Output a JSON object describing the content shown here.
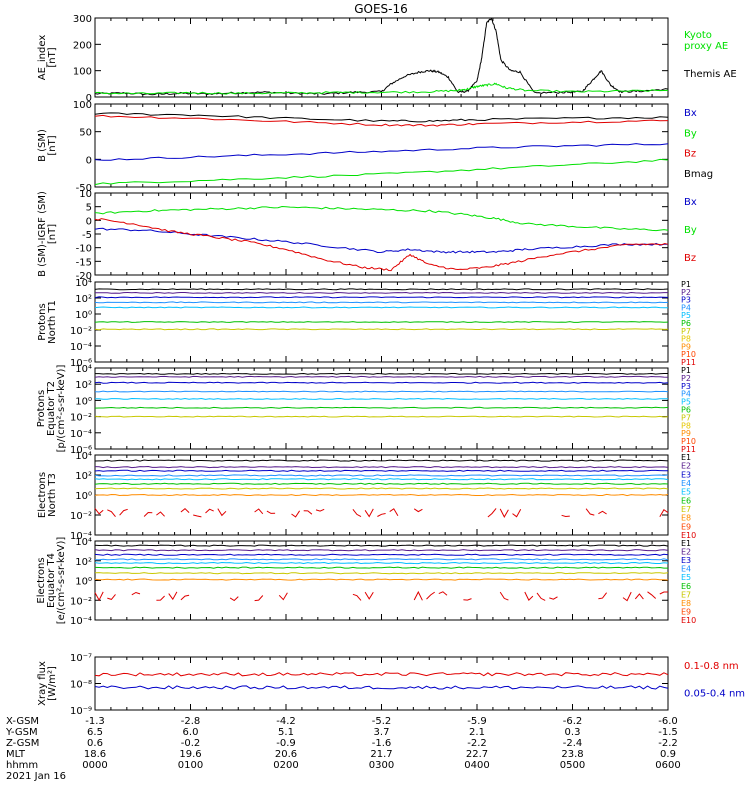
{
  "title": "GOES-16",
  "colors": {
    "black": "#000000",
    "blue": "#0000c8",
    "green": "#00e000",
    "red": "#e00000"
  },
  "chart_data": {
    "type": "line",
    "x_ticks": [
      "0000",
      "0100",
      "0200",
      "0300",
      "0400",
      "0500",
      "0600"
    ],
    "panels": [
      {
        "ylabel": [
          "AE_index",
          "[nT]"
        ],
        "yticks": [
          "300",
          "200",
          "100",
          "0"
        ],
        "ylim": [
          0,
          300
        ],
        "log": false,
        "legend": [
          {
            "text": "Kyoto",
            "color": "#00e000"
          },
          {
            "text": "proxy AE",
            "color": "#00e000"
          },
          {
            "text": "Themis AE",
            "color": "#000000"
          }
        ],
        "series": [
          {
            "name": "Themis AE",
            "color": "#000000",
            "x": [
              0,
              0.3,
              0.6,
              0.9,
              1.2,
              1.5,
              1.8,
              2.1,
              2.4,
              2.7,
              3.0,
              3.1,
              3.25,
              3.4,
              3.5,
              3.6,
              3.7,
              3.8,
              3.9,
              4.0,
              4.05,
              4.1,
              4.15,
              4.2,
              4.25,
              4.35,
              4.45,
              4.6,
              4.9,
              5.1,
              5.2,
              5.3,
              5.4,
              5.5,
              5.7,
              6.0
            ],
            "y": [
              12,
              15,
              10,
              14,
              12,
              16,
              18,
              14,
              12,
              18,
              20,
              50,
              80,
              95,
              100,
              95,
              75,
              18,
              22,
              60,
              150,
              280,
              300,
              250,
              140,
              100,
              95,
              15,
              18,
              20,
              60,
              100,
              45,
              20,
              22,
              30
            ]
          },
          {
            "name": "Kyoto proxy AE",
            "color": "#00e000",
            "x": [
              0,
              0.5,
              1.0,
              1.5,
              2.0,
              2.5,
              3.0,
              3.5,
              3.8,
              3.9,
              4.0,
              4.1,
              4.2,
              4.3,
              4.5,
              5.0,
              5.5,
              6.0
            ],
            "y": [
              15,
              13,
              16,
              14,
              15,
              17,
              18,
              20,
              25,
              30,
              40,
              45,
              50,
              35,
              25,
              20,
              22,
              25
            ]
          }
        ]
      },
      {
        "ylabel": [
          "B (SM)",
          "[nT]"
        ],
        "yticks": [
          "100",
          "50",
          "0",
          "-50"
        ],
        "ylim": [
          -55,
          120
        ],
        "log": false,
        "legend": [
          {
            "text": "Bx",
            "color": "#0000c8"
          },
          {
            "text": "By",
            "color": "#00e000"
          },
          {
            "text": "Bz",
            "color": "#e00000"
          },
          {
            "text": "Bmag",
            "color": "#000000"
          }
        ],
        "series": [
          {
            "name": "Bmag",
            "color": "#000000",
            "x": [
              0,
              1,
              2,
              3,
              3.5,
              4,
              5,
              6
            ],
            "y": [
              100,
              97,
              90,
              84,
              84,
              87,
              90,
              92
            ]
          },
          {
            "name": "Bz",
            "color": "#e00000",
            "x": [
              0,
              1,
              2,
              3,
              3.5,
              4,
              5,
              6
            ],
            "y": [
              95,
              90,
              83,
              76,
              75,
              78,
              82,
              85
            ]
          },
          {
            "name": "Bx",
            "color": "#0000c8",
            "x": [
              0,
              1,
              2,
              3,
              4,
              5,
              6
            ],
            "y": [
              2,
              8,
              14,
              20,
              27,
              32,
              36
            ]
          },
          {
            "name": "By",
            "color": "#00e000",
            "x": [
              0,
              1,
              2,
              3,
              4,
              5,
              6
            ],
            "y": [
              -48,
              -42,
              -35,
              -28,
              -18,
              -8,
              2
            ]
          }
        ]
      },
      {
        "ylabel": [
          "B (SM)-IGRF (SM)",
          "[nT]"
        ],
        "yticks": [
          "10",
          "5",
          "0",
          "-5",
          "-10",
          "-15",
          "-20"
        ],
        "ylim": [
          -21,
          11
        ],
        "log": false,
        "legend": [
          {
            "text": "Bx",
            "color": "#0000c8"
          },
          {
            "text": "By",
            "color": "#00e000"
          },
          {
            "text": "Bz",
            "color": "#e00000"
          }
        ],
        "series": [
          {
            "name": "By",
            "color": "#00e000",
            "x": [
              0,
              0.5,
              1,
              1.5,
              2,
              2.5,
              3,
              3.5,
              3.9,
              4.2,
              4.5,
              5,
              5.5,
              6
            ],
            "y": [
              3,
              4,
              4.5,
              5,
              5.5,
              5,
              4.5,
              4,
              2.5,
              1,
              -1,
              -2,
              -3,
              -3.5
            ]
          },
          {
            "name": "Bx",
            "color": "#0000c8",
            "x": [
              0,
              0.5,
              1,
              1.5,
              2,
              2.5,
              3,
              3.3,
              3.6,
              3.9,
              4.2,
              4.5,
              5,
              5.5,
              6
            ],
            "y": [
              -3,
              -3.5,
              -5,
              -6.5,
              -8,
              -10,
              -12,
              -11,
              -12,
              -12,
              -12,
              -11,
              -10,
              -9,
              -9
            ]
          },
          {
            "name": "Bz",
            "color": "#e00000",
            "x": [
              0,
              0.4,
              0.8,
              1.2,
              1.6,
              2,
              2.4,
              2.8,
              3.1,
              3.3,
              3.5,
              3.8,
              4.1,
              4.4,
              4.8,
              5.2,
              5.6,
              6
            ],
            "y": [
              1,
              -1,
              -4,
              -6,
              -8,
              -11,
              -15,
              -18,
              -19,
              -13,
              -17,
              -19,
              -18,
              -16,
              -13,
              -11,
              -9,
              -9
            ]
          }
        ]
      },
      {
        "ylabel": [
          "Protons",
          "North T1"
        ],
        "yticks": [
          "10⁴",
          "10²",
          "10⁰",
          "10⁻²",
          "10⁻⁴",
          "10⁻⁶"
        ],
        "ylim": [
          -7,
          4
        ],
        "log": true,
        "legend": [
          {
            "text": "P1",
            "color": "#000000"
          },
          {
            "text": "P2",
            "color": "#551a8b"
          },
          {
            "text": "P3",
            "color": "#0000c8"
          },
          {
            "text": "P4",
            "color": "#1e90ff"
          },
          {
            "text": "P5",
            "color": "#00bfff"
          },
          {
            "text": "P6",
            "color": "#00c000"
          },
          {
            "text": "P7",
            "color": "#c8c800"
          },
          {
            "text": "P8",
            "color": "#e6c800"
          },
          {
            "text": "P9",
            "color": "#ff8c00"
          },
          {
            "text": "P10",
            "color": "#ff4500"
          },
          {
            "text": "P11",
            "color": "#e00000"
          }
        ],
        "levels": [
          {
            "name": "P1",
            "color": "#000000",
            "y": 3.0
          },
          {
            "name": "P2",
            "color": "#551a8b",
            "y": 2.5
          },
          {
            "name": "P3",
            "color": "#0000c8",
            "y": 1.9
          },
          {
            "name": "P4",
            "color": "#1e90ff",
            "y": 1.2
          },
          {
            "name": "P5",
            "color": "#00bfff",
            "y": 0.5
          },
          {
            "name": "P6",
            "color": "#00c000",
            "y": -1.5
          },
          {
            "name": "P7",
            "color": "#c8c800",
            "y": -2.5
          }
        ]
      },
      {
        "ylabel": [
          "Protons",
          "Equator T2",
          "[p/(cm²-s-sr-keV)]"
        ],
        "yticks": [
          "10⁴",
          "10²",
          "10⁰",
          "10⁻²",
          "10⁻⁴",
          "10⁻⁶"
        ],
        "ylim": [
          -7,
          4
        ],
        "log": true,
        "legend": [
          {
            "text": "P1",
            "color": "#000000"
          },
          {
            "text": "P2",
            "color": "#551a8b"
          },
          {
            "text": "P3",
            "color": "#0000c8"
          },
          {
            "text": "P4",
            "color": "#1e90ff"
          },
          {
            "text": "P5",
            "color": "#00bfff"
          },
          {
            "text": "P6",
            "color": "#00c000"
          },
          {
            "text": "P7",
            "color": "#c8c800"
          },
          {
            "text": "P8",
            "color": "#e6c800"
          },
          {
            "text": "P9",
            "color": "#ff8c00"
          },
          {
            "text": "P10",
            "color": "#ff4500"
          },
          {
            "text": "P11",
            "color": "#e00000"
          }
        ],
        "levels": [
          {
            "name": "P1",
            "color": "#000000",
            "y": 3.2
          },
          {
            "name": "P2",
            "color": "#551a8b",
            "y": 2.8
          },
          {
            "name": "P3",
            "color": "#0000c8",
            "y": 2.0
          },
          {
            "name": "P4",
            "color": "#1e90ff",
            "y": 0.8
          },
          {
            "name": "P5",
            "color": "#00bfff",
            "y": -0.2
          },
          {
            "name": "P6",
            "color": "#00c000",
            "y": -1.4
          },
          {
            "name": "P7",
            "color": "#c8c800",
            "y": -2.6
          }
        ]
      },
      {
        "ylabel": [
          "Electrons",
          "North T3"
        ],
        "yticks": [
          "10⁴",
          "10²",
          "10⁰",
          "10⁻²",
          "10⁻⁴"
        ],
        "ylim": [
          -4.6,
          4
        ],
        "log": true,
        "legend": [
          {
            "text": "E1",
            "color": "#000000"
          },
          {
            "text": "E2",
            "color": "#551a8b"
          },
          {
            "text": "E3",
            "color": "#0000c8"
          },
          {
            "text": "E4",
            "color": "#1e90ff"
          },
          {
            "text": "E5",
            "color": "#00bfff"
          },
          {
            "text": "E6",
            "color": "#00c000"
          },
          {
            "text": "E7",
            "color": "#c8c800"
          },
          {
            "text": "E8",
            "color": "#ff8c00"
          },
          {
            "text": "E9",
            "color": "#ff4500"
          },
          {
            "text": "E10",
            "color": "#e00000"
          }
        ],
        "levels": [
          {
            "name": "E1",
            "color": "#000000",
            "y": 3.4
          },
          {
            "name": "E2",
            "color": "#551a8b",
            "y": 2.7
          },
          {
            "name": "E3",
            "color": "#0000c8",
            "y": 2.3
          },
          {
            "name": "E4",
            "color": "#1e90ff",
            "y": 1.8
          },
          {
            "name": "E5",
            "color": "#00bfff",
            "y": 1.4
          },
          {
            "name": "E6",
            "color": "#00c000",
            "y": 0.9
          },
          {
            "name": "E7",
            "color": "#c8c800",
            "y": 0.4
          },
          {
            "name": "E8",
            "color": "#ff8c00",
            "y": -0.3
          },
          {
            "name": "E10",
            "color": "#e00000",
            "y": -2.2
          }
        ]
      },
      {
        "ylabel": [
          "Electrons",
          "Equator T4",
          "[e/(cm²-s-sr-keV)]"
        ],
        "yticks": [
          "10⁴",
          "10²",
          "10⁰",
          "10⁻²",
          "10⁻⁴"
        ],
        "ylim": [
          -4.6,
          4
        ],
        "log": true,
        "legend": [
          {
            "text": "E1",
            "color": "#000000"
          },
          {
            "text": "E2",
            "color": "#551a8b"
          },
          {
            "text": "E3",
            "color": "#0000c8"
          },
          {
            "text": "E4",
            "color": "#1e90ff"
          },
          {
            "text": "E5",
            "color": "#00bfff"
          },
          {
            "text": "E6",
            "color": "#00c000"
          },
          {
            "text": "E7",
            "color": "#c8c800"
          },
          {
            "text": "E8",
            "color": "#ff8c00"
          },
          {
            "text": "E9",
            "color": "#ff4500"
          },
          {
            "text": "E10",
            "color": "#e00000"
          }
        ],
        "levels": [
          {
            "name": "E1",
            "color": "#000000",
            "y": 3.5
          },
          {
            "name": "E2",
            "color": "#551a8b",
            "y": 3.0
          },
          {
            "name": "E3",
            "color": "#0000c8",
            "y": 2.5
          },
          {
            "name": "E4",
            "color": "#1e90ff",
            "y": 2.0
          },
          {
            "name": "E5",
            "color": "#00bfff",
            "y": 1.6
          },
          {
            "name": "E6",
            "color": "#00c000",
            "y": 1.1
          },
          {
            "name": "E7",
            "color": "#c8c800",
            "y": 0.5
          },
          {
            "name": "E8",
            "color": "#ff8c00",
            "y": -0.2
          },
          {
            "name": "E10",
            "color": "#e00000",
            "y": -2.0
          }
        ]
      },
      {
        "ylabel": [
          "Xray flux",
          "[W/m²]"
        ],
        "yticks": [
          "10⁻⁷",
          "10⁻⁸",
          "10⁻⁹"
        ],
        "ylim": [
          -9,
          -7
        ],
        "log": true,
        "legend": [
          {
            "text": "0.1-0.8 nm",
            "color": "#e00000"
          },
          {
            "text": "0.05-0.4 nm",
            "color": "#0000c8"
          }
        ],
        "levels": [
          {
            "name": "0.1-0.8 nm",
            "color": "#e00000",
            "y": -7.65
          },
          {
            "name": "0.05-0.4 nm",
            "color": "#0000c8",
            "y": -8.15
          }
        ]
      }
    ],
    "ephemeris": {
      "labels": [
        "X-GSM",
        "Y-GSM",
        "Z-GSM",
        "MLT",
        "hhmm"
      ],
      "rows": [
        [
          "-1.3",
          "-2.8",
          "-4.2",
          "-5.2",
          "-5.9",
          "-6.2",
          "-6.0"
        ],
        [
          "6.5",
          "6.0",
          "5.1",
          "3.7",
          "2.1",
          "0.3",
          "-1.5"
        ],
        [
          "0.6",
          "-0.2",
          "-0.9",
          "-1.6",
          "-2.2",
          "-2.4",
          "-2.2"
        ],
        [
          "18.6",
          "19.6",
          "20.6",
          "21.7",
          "22.7",
          "23.8",
          "0.9"
        ],
        [
          "0000",
          "0100",
          "0200",
          "0300",
          "0400",
          "0500",
          "0600"
        ]
      ],
      "date": "2021 Jan 16"
    }
  }
}
